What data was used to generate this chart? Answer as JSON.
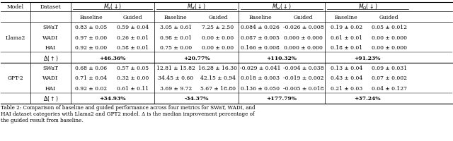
{
  "title": "Table 2: Comparison of baseline and guided performance across four metrics for SWaT, WADI, and\nHAI dataset categories with Llama2 and GPT2 model. Δ is the median improvement percentage of\nthe guided result from baseline.",
  "col_headers": [
    "Model",
    "Dataset",
    "M_s(↓)",
    "",
    "M_d(↓)",
    "",
    "M_ω(↓)",
    "",
    "M_Ω(↓)",
    ""
  ],
  "sub_headers": [
    "Baseline",
    "Guided",
    "Baseline",
    "Guided",
    "Baseline",
    "Guided",
    "Baseline",
    "Guided"
  ],
  "models": [
    "Llama2",
    "GPT-2"
  ],
  "datasets": [
    "SWaT",
    "WADI",
    "HAI"
  ],
  "llama2_data": {
    "SWaT": [
      "0.83 ± 0.05",
      "0.59 ± 0.04",
      "3.05 ± 0.61",
      "7.25 ± 2.50",
      "0.084 ± 0.026",
      "-0.026 ± 0.008",
      "0.19 ± 0.02",
      "0.05 ± 0.012"
    ],
    "WADI": [
      "0.97 ± 0.00",
      "0.26 ± 0.01",
      "0.98 ± 0.01",
      "0.00 ± 0.00",
      "0.087 ± 0.005",
      "0.000 ± 0.000",
      "0.61 ± 0.01",
      "0.00 ± 0.000"
    ],
    "HAI": [
      "0.92 ± 0.00",
      "0.58 ± 0.01",
      "0.75 ± 0.00",
      "0.00 ± 0.00",
      "0.166 ± 0.008",
      "0.000 ± 0.000",
      "0.18 ± 0.01",
      "0.00 ± 0.000"
    ]
  },
  "llama2_delta": [
    "+46.36%",
    "+20.77%",
    "+110.32%",
    "+91.23%"
  ],
  "gpt2_data": {
    "SWaT": [
      "0.68 ± 0.06",
      "0.57 ± 0.05",
      "12.81 ± 15.82",
      "16.28 ± 16.30",
      "-0.029 ± 0.041",
      "-0.094 ± 0.038",
      "0.13 ± 0.04",
      "0.09 ± 0.031"
    ],
    "WADI": [
      "0.71 ± 0.04",
      "0.32 ± 0.00",
      "34.45 ± 0.60",
      "42.15 ± 0.94",
      "0.018 ± 0.003",
      "-0.019 ± 0.002",
      "0.43 ± 0.04",
      "0.07 ± 0.002"
    ],
    "HAI": [
      "0.92 ± 0.02",
      "0.61 ± 0.11",
      "3.69 ± 9.72",
      "5.67 ± 18.80",
      "0.136 ± 0.050",
      "-0.005 ± 0.018",
      "0.21 ± 0.03",
      "0.04 ± 0.127"
    ]
  },
  "gpt2_delta": [
    "+34.93%",
    "-34.37%",
    "+177.79%",
    "+37.24%"
  ],
  "bg_color": "#ffffff",
  "header_bg": "#f0f0f0",
  "delta_bg": "#e8e8e8",
  "font_size": 5.5,
  "caption_font_size": 5.2
}
